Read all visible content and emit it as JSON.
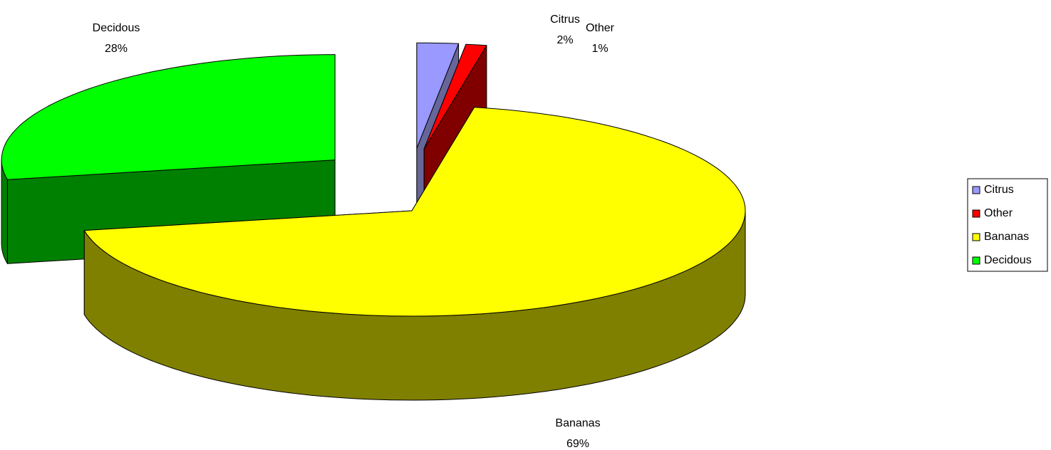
{
  "chart_data": {
    "type": "pie",
    "categories": [
      "Citrus",
      "Other",
      "Bananas",
      "Decidous"
    ],
    "values": [
      2,
      1,
      69,
      28
    ],
    "value_labels": [
      "2%",
      "1%",
      "69%",
      "28%"
    ],
    "colors": [
      "#9999ff",
      "#ff0000",
      "#ffff00",
      "#00ff00"
    ],
    "side_colors": [
      "#666699",
      "#800000",
      "#808000",
      "#008000"
    ],
    "legend": "right"
  }
}
